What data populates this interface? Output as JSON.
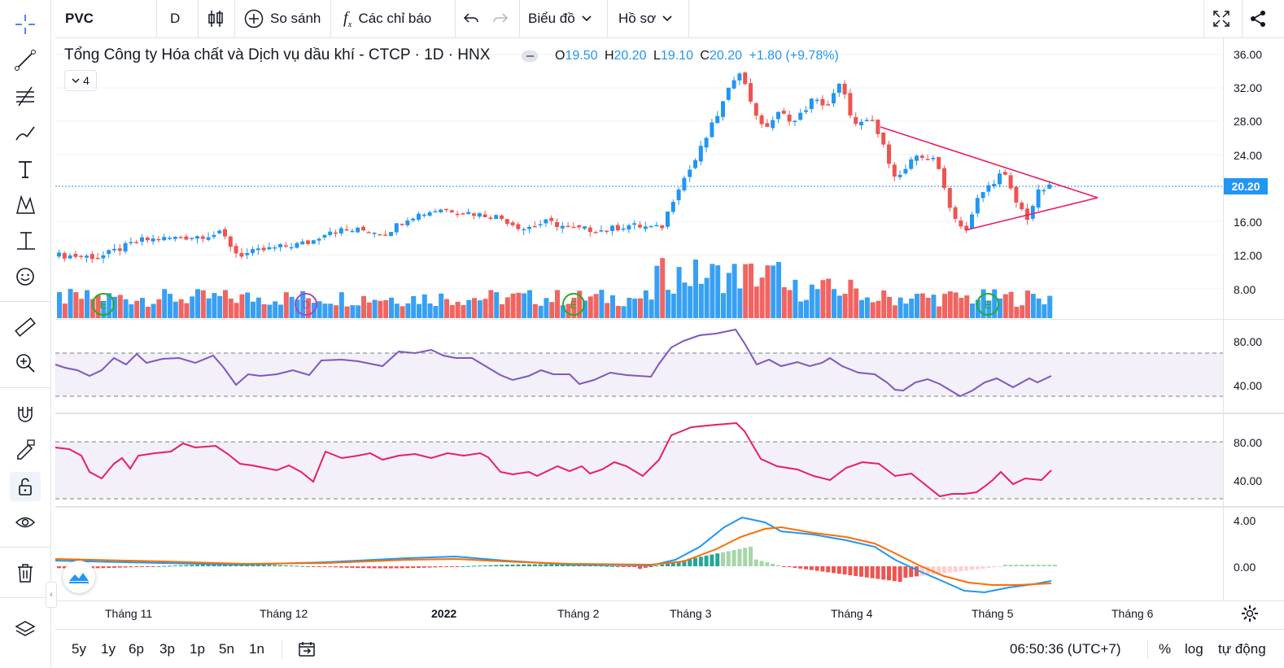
{
  "toolbar": {
    "symbol": "PVC",
    "interval": "D",
    "compare_label": "So sánh",
    "indicators_label": "Các chỉ báo",
    "chart_label": "Biểu đồ",
    "profile_label": "Hồ sơ"
  },
  "legend": {
    "title": "Tổng Công ty Hóa chất và Dịch vụ dầu khí - CTCP · 1D · HNX",
    "open_key": "O",
    "open": "19.50",
    "high_key": "H",
    "high": "20.20",
    "low_key": "L",
    "low": "19.10",
    "close_key": "C",
    "close": "20.20",
    "change": "+1.80 (+9.78%)",
    "collapsed_count": "4"
  },
  "price_axis": {
    "labels": [
      "36.00",
      "32.00",
      "28.00",
      "24.00",
      "20.00",
      "16.00",
      "12.00",
      "8.00"
    ],
    "current": "20.20"
  },
  "rsi_axis": [
    "80.00",
    "40.00"
  ],
  "stoch_axis": [
    "80.00",
    "40.00"
  ],
  "macd_axis": [
    "4.00",
    "0.00"
  ],
  "time_axis": [
    "Tháng 11",
    "Tháng 12",
    "2022",
    "Tháng 2",
    "Tháng 3",
    "Tháng 4",
    "Tháng 5",
    "Tháng 6"
  ],
  "event_markers": [
    "E",
    "D",
    "E",
    "E"
  ],
  "bottom": {
    "ranges": [
      "5y",
      "1y",
      "6p",
      "3p",
      "1p",
      "5n",
      "1n"
    ],
    "clock": "06:50:36 (UTC+7)",
    "percent": "%",
    "log": "log",
    "auto": "tự động"
  },
  "colors": {
    "up": "#2196f3",
    "down": "#ef5350",
    "rsi": "#7e57c2",
    "stoch": "#e91e63",
    "macd": "#2196f3",
    "signal": "#ff6d00",
    "pattern": "#e91e63"
  }
}
